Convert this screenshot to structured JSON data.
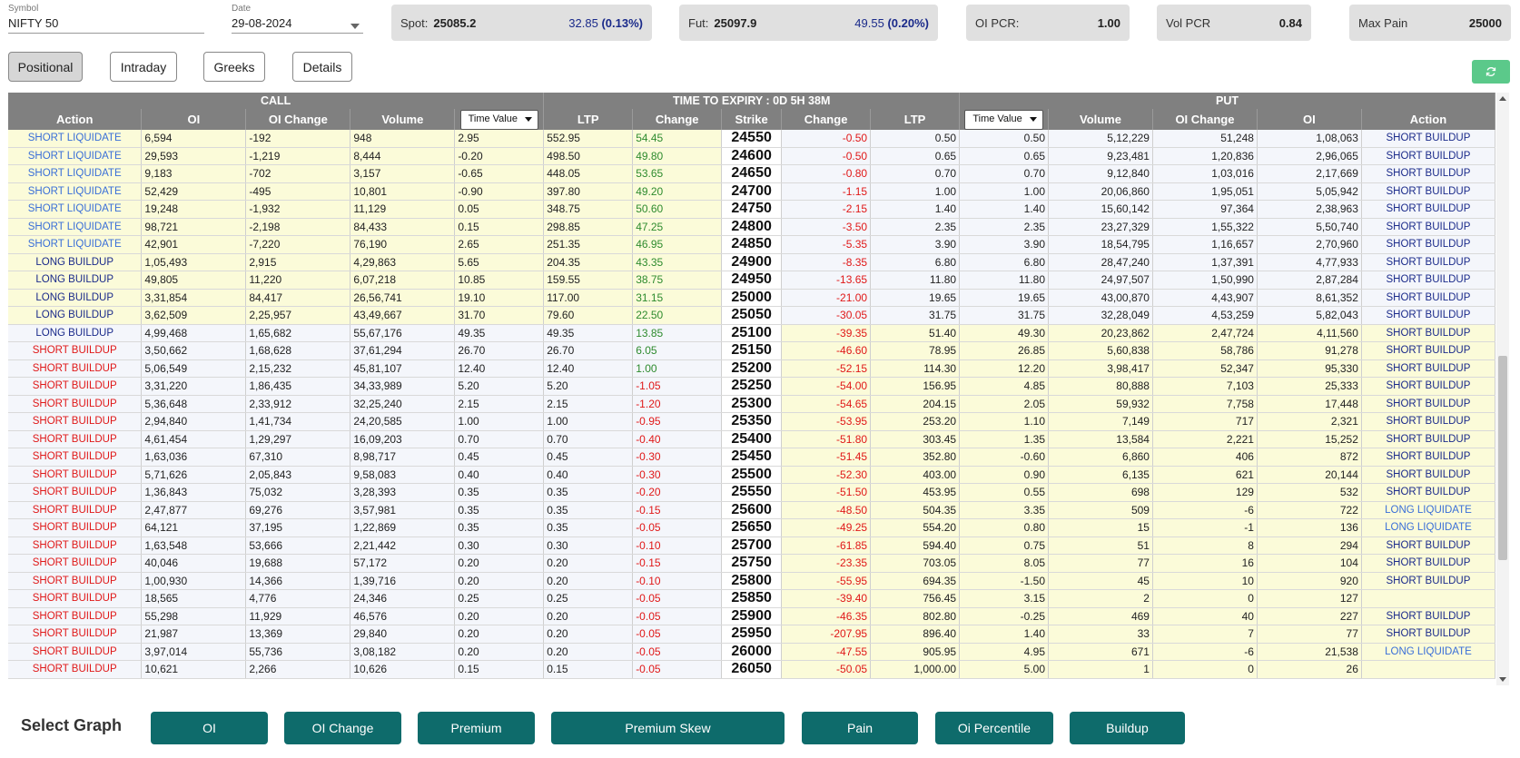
{
  "symbol": {
    "label": "Symbol",
    "value": "NIFTY 50"
  },
  "date": {
    "label": "Date",
    "value": "29-08-2024"
  },
  "stats": {
    "spot": {
      "label": "Spot:",
      "value": "25085.2",
      "change": "32.85",
      "pct": "(0.13%)"
    },
    "fut": {
      "label": "Fut:",
      "value": "25097.9",
      "change": "49.55",
      "pct": "(0.20%)"
    },
    "oi_pcr": {
      "label": "OI PCR:",
      "value": "1.00"
    },
    "vol_pcr": {
      "label": "Vol PCR",
      "value": "0.84"
    },
    "max_pain": {
      "label": "Max Pain",
      "value": "25000"
    }
  },
  "modes": {
    "positional": "Positional",
    "intraday": "Intraday",
    "greeks": "Greeks",
    "details": "Details",
    "active": "Positional"
  },
  "refresh_icon": "refresh-icon",
  "table": {
    "call_title": "CALL",
    "expiry_title": "TIME TO EXPIRY : 0D 5H 38M",
    "put_title": "PUT",
    "time_value_option": "Time Value",
    "headers": [
      "Action",
      "OI",
      "OI Change",
      "Volume",
      "",
      "LTP",
      "Change",
      "Strike",
      "Change",
      "LTP",
      "",
      "Volume",
      "OI Change",
      "OI",
      "Action"
    ],
    "rows": [
      {
        "ca": "SHORT LIQUIDATE",
        "coi": "6,594",
        "coic": "-192",
        "cvol": "948",
        "ctv": "2.95",
        "cltp": "552.95",
        "cchg": "54.45",
        "strike": "24550",
        "pchg": "-0.50",
        "pltp": "0.50",
        "ptv": "0.50",
        "pvol": "5,12,229",
        "poic": "51,248",
        "poi": "1,08,063",
        "pa": "SHORT BUILDUP"
      },
      {
        "ca": "SHORT LIQUIDATE",
        "coi": "29,593",
        "coic": "-1,219",
        "cvol": "8,444",
        "ctv": "-0.20",
        "cltp": "498.50",
        "cchg": "49.80",
        "strike": "24600",
        "pchg": "-0.50",
        "pltp": "0.65",
        "ptv": "0.65",
        "pvol": "9,23,481",
        "poic": "1,20,836",
        "poi": "2,96,065",
        "pa": "SHORT BUILDUP"
      },
      {
        "ca": "SHORT LIQUIDATE",
        "coi": "9,183",
        "coic": "-702",
        "cvol": "3,157",
        "ctv": "-0.65",
        "cltp": "448.05",
        "cchg": "53.65",
        "strike": "24650",
        "pchg": "-0.80",
        "pltp": "0.70",
        "ptv": "0.70",
        "pvol": "9,12,840",
        "poic": "1,03,016",
        "poi": "2,17,669",
        "pa": "SHORT BUILDUP"
      },
      {
        "ca": "SHORT LIQUIDATE",
        "coi": "52,429",
        "coic": "-495",
        "cvol": "10,801",
        "ctv": "-0.90",
        "cltp": "397.80",
        "cchg": "49.20",
        "strike": "24700",
        "pchg": "-1.15",
        "pltp": "1.00",
        "ptv": "1.00",
        "pvol": "20,06,860",
        "poic": "1,95,051",
        "poi": "5,05,942",
        "pa": "SHORT BUILDUP"
      },
      {
        "ca": "SHORT LIQUIDATE",
        "coi": "19,248",
        "coic": "-1,932",
        "cvol": "11,129",
        "ctv": "0.05",
        "cltp": "348.75",
        "cchg": "50.60",
        "strike": "24750",
        "pchg": "-2.15",
        "pltp": "1.40",
        "ptv": "1.40",
        "pvol": "15,60,142",
        "poic": "97,364",
        "poi": "2,38,963",
        "pa": "SHORT BUILDUP"
      },
      {
        "ca": "SHORT LIQUIDATE",
        "coi": "98,721",
        "coic": "-2,198",
        "cvol": "84,433",
        "ctv": "0.15",
        "cltp": "298.85",
        "cchg": "47.25",
        "strike": "24800",
        "pchg": "-3.50",
        "pltp": "2.35",
        "ptv": "2.35",
        "pvol": "23,27,329",
        "poic": "1,55,322",
        "poi": "5,50,740",
        "pa": "SHORT BUILDUP"
      },
      {
        "ca": "SHORT LIQUIDATE",
        "coi": "42,901",
        "coic": "-7,220",
        "cvol": "76,190",
        "ctv": "2.65",
        "cltp": "251.35",
        "cchg": "46.95",
        "strike": "24850",
        "pchg": "-5.35",
        "pltp": "3.90",
        "ptv": "3.90",
        "pvol": "18,54,795",
        "poic": "1,16,657",
        "poi": "2,70,960",
        "pa": "SHORT BUILDUP"
      },
      {
        "ca": "LONG BUILDUP",
        "coi": "1,05,493",
        "coic": "2,915",
        "cvol": "4,29,863",
        "ctv": "5.65",
        "cltp": "204.35",
        "cchg": "43.35",
        "strike": "24900",
        "pchg": "-8.35",
        "pltp": "6.80",
        "ptv": "6.80",
        "pvol": "28,47,240",
        "poic": "1,37,391",
        "poi": "4,77,933",
        "pa": "SHORT BUILDUP"
      },
      {
        "ca": "LONG BUILDUP",
        "coi": "49,805",
        "coic": "11,220",
        "cvol": "6,07,218",
        "ctv": "10.85",
        "cltp": "159.55",
        "cchg": "38.75",
        "strike": "24950",
        "pchg": "-13.65",
        "pltp": "11.80",
        "ptv": "11.80",
        "pvol": "24,97,507",
        "poic": "1,50,990",
        "poi": "2,87,284",
        "pa": "SHORT BUILDUP"
      },
      {
        "ca": "LONG BUILDUP",
        "coi": "3,31,854",
        "coic": "84,417",
        "cvol": "26,56,741",
        "ctv": "19.10",
        "cltp": "117.00",
        "cchg": "31.15",
        "strike": "25000",
        "pchg": "-21.00",
        "pltp": "19.65",
        "ptv": "19.65",
        "pvol": "43,00,870",
        "poic": "4,43,907",
        "poi": "8,61,352",
        "pa": "SHORT BUILDUP"
      },
      {
        "ca": "LONG BUILDUP",
        "coi": "3,62,509",
        "coic": "2,25,957",
        "cvol": "43,49,667",
        "ctv": "31.70",
        "cltp": "79.60",
        "cchg": "22.50",
        "strike": "25050",
        "pchg": "-30.05",
        "pltp": "31.75",
        "ptv": "31.75",
        "pvol": "32,28,049",
        "poic": "4,53,259",
        "poi": "5,82,043",
        "pa": "SHORT BUILDUP"
      },
      {
        "ca": "LONG BUILDUP",
        "coi": "4,99,468",
        "coic": "1,65,682",
        "cvol": "55,67,176",
        "ctv": "49.35",
        "cltp": "49.35",
        "cchg": "13.85",
        "strike": "25100",
        "pchg": "-39.35",
        "pltp": "51.40",
        "ptv": "49.30",
        "pvol": "20,23,862",
        "poic": "2,47,724",
        "poi": "4,11,560",
        "pa": "SHORT BUILDUP"
      },
      {
        "ca": "SHORT BUILDUP",
        "coi": "3,50,662",
        "coic": "1,68,628",
        "cvol": "37,61,294",
        "ctv": "26.70",
        "cltp": "26.70",
        "cchg": "6.05",
        "strike": "25150",
        "pchg": "-46.60",
        "pltp": "78.95",
        "ptv": "26.85",
        "pvol": "5,60,838",
        "poic": "58,786",
        "poi": "91,278",
        "pa": "SHORT BUILDUP"
      },
      {
        "ca": "SHORT BUILDUP",
        "coi": "5,06,549",
        "coic": "2,15,232",
        "cvol": "45,81,107",
        "ctv": "12.40",
        "cltp": "12.40",
        "cchg": "1.00",
        "strike": "25200",
        "pchg": "-52.15",
        "pltp": "114.30",
        "ptv": "12.20",
        "pvol": "3,98,417",
        "poic": "52,347",
        "poi": "95,330",
        "pa": "SHORT BUILDUP"
      },
      {
        "ca": "SHORT BUILDUP",
        "coi": "3,31,220",
        "coic": "1,86,435",
        "cvol": "34,33,989",
        "ctv": "5.20",
        "cltp": "5.20",
        "cchg": "-1.05",
        "strike": "25250",
        "pchg": "-54.00",
        "pltp": "156.95",
        "ptv": "4.85",
        "pvol": "80,888",
        "poic": "7,103",
        "poi": "25,333",
        "pa": "SHORT BUILDUP"
      },
      {
        "ca": "SHORT BUILDUP",
        "coi": "5,36,648",
        "coic": "2,33,912",
        "cvol": "32,25,240",
        "ctv": "2.15",
        "cltp": "2.15",
        "cchg": "-1.20",
        "strike": "25300",
        "pchg": "-54.65",
        "pltp": "204.15",
        "ptv": "2.05",
        "pvol": "59,932",
        "poic": "7,758",
        "poi": "17,448",
        "pa": "SHORT BUILDUP"
      },
      {
        "ca": "SHORT BUILDUP",
        "coi": "2,94,840",
        "coic": "1,41,734",
        "cvol": "24,20,585",
        "ctv": "1.00",
        "cltp": "1.00",
        "cchg": "-0.95",
        "strike": "25350",
        "pchg": "-53.95",
        "pltp": "253.20",
        "ptv": "1.10",
        "pvol": "7,149",
        "poic": "717",
        "poi": "2,321",
        "pa": "SHORT BUILDUP"
      },
      {
        "ca": "SHORT BUILDUP",
        "coi": "4,61,454",
        "coic": "1,29,297",
        "cvol": "16,09,203",
        "ctv": "0.70",
        "cltp": "0.70",
        "cchg": "-0.40",
        "strike": "25400",
        "pchg": "-51.80",
        "pltp": "303.45",
        "ptv": "1.35",
        "pvol": "13,584",
        "poic": "2,221",
        "poi": "15,252",
        "pa": "SHORT BUILDUP"
      },
      {
        "ca": "SHORT BUILDUP",
        "coi": "1,63,036",
        "coic": "67,310",
        "cvol": "8,98,717",
        "ctv": "0.45",
        "cltp": "0.45",
        "cchg": "-0.30",
        "strike": "25450",
        "pchg": "-51.45",
        "pltp": "352.80",
        "ptv": "-0.60",
        "pvol": "6,860",
        "poic": "406",
        "poi": "872",
        "pa": "SHORT BUILDUP"
      },
      {
        "ca": "SHORT BUILDUP",
        "coi": "5,71,626",
        "coic": "2,05,843",
        "cvol": "9,58,083",
        "ctv": "0.40",
        "cltp": "0.40",
        "cchg": "-0.30",
        "strike": "25500",
        "pchg": "-52.30",
        "pltp": "403.00",
        "ptv": "0.90",
        "pvol": "6,135",
        "poic": "621",
        "poi": "20,144",
        "pa": "SHORT BUILDUP"
      },
      {
        "ca": "SHORT BUILDUP",
        "coi": "1,36,843",
        "coic": "75,032",
        "cvol": "3,28,393",
        "ctv": "0.35",
        "cltp": "0.35",
        "cchg": "-0.20",
        "strike": "25550",
        "pchg": "-51.50",
        "pltp": "453.95",
        "ptv": "0.55",
        "pvol": "698",
        "poic": "129",
        "poi": "532",
        "pa": "SHORT BUILDUP"
      },
      {
        "ca": "SHORT BUILDUP",
        "coi": "2,47,877",
        "coic": "69,276",
        "cvol": "3,57,981",
        "ctv": "0.35",
        "cltp": "0.35",
        "cchg": "-0.15",
        "strike": "25600",
        "pchg": "-48.50",
        "pltp": "504.35",
        "ptv": "3.35",
        "pvol": "509",
        "poic": "-6",
        "poi": "722",
        "pa": "LONG LIQUIDATE"
      },
      {
        "ca": "SHORT BUILDUP",
        "coi": "64,121",
        "coic": "37,195",
        "cvol": "1,22,869",
        "ctv": "0.35",
        "cltp": "0.35",
        "cchg": "-0.05",
        "strike": "25650",
        "pchg": "-49.25",
        "pltp": "554.20",
        "ptv": "0.80",
        "pvol": "15",
        "poic": "-1",
        "poi": "136",
        "pa": "LONG LIQUIDATE"
      },
      {
        "ca": "SHORT BUILDUP",
        "coi": "1,63,548",
        "coic": "53,666",
        "cvol": "2,21,442",
        "ctv": "0.30",
        "cltp": "0.30",
        "cchg": "-0.10",
        "strike": "25700",
        "pchg": "-61.85",
        "pltp": "594.40",
        "ptv": "0.75",
        "pvol": "51",
        "poic": "8",
        "poi": "294",
        "pa": "SHORT BUILDUP"
      },
      {
        "ca": "SHORT BUILDUP",
        "coi": "40,046",
        "coic": "19,688",
        "cvol": "57,172",
        "ctv": "0.20",
        "cltp": "0.20",
        "cchg": "-0.15",
        "strike": "25750",
        "pchg": "-23.35",
        "pltp": "703.05",
        "ptv": "8.05",
        "pvol": "77",
        "poic": "16",
        "poi": "104",
        "pa": "SHORT BUILDUP"
      },
      {
        "ca": "SHORT BUILDUP",
        "coi": "1,00,930",
        "coic": "14,366",
        "cvol": "1,39,716",
        "ctv": "0.20",
        "cltp": "0.20",
        "cchg": "-0.10",
        "strike": "25800",
        "pchg": "-55.95",
        "pltp": "694.35",
        "ptv": "-1.50",
        "pvol": "45",
        "poic": "10",
        "poi": "920",
        "pa": "SHORT BUILDUP"
      },
      {
        "ca": "SHORT BUILDUP",
        "coi": "18,565",
        "coic": "4,776",
        "cvol": "24,346",
        "ctv": "0.25",
        "cltp": "0.25",
        "cchg": "-0.05",
        "strike": "25850",
        "pchg": "-39.40",
        "pltp": "756.45",
        "ptv": "3.15",
        "pvol": "2",
        "poic": "0",
        "poi": "127",
        "pa": ""
      },
      {
        "ca": "SHORT BUILDUP",
        "coi": "55,298",
        "coic": "11,929",
        "cvol": "46,576",
        "ctv": "0.20",
        "cltp": "0.20",
        "cchg": "-0.05",
        "strike": "25900",
        "pchg": "-46.35",
        "pltp": "802.80",
        "ptv": "-0.25",
        "pvol": "469",
        "poic": "40",
        "poi": "227",
        "pa": "SHORT BUILDUP"
      },
      {
        "ca": "SHORT BUILDUP",
        "coi": "21,987",
        "coic": "13,369",
        "cvol": "29,840",
        "ctv": "0.20",
        "cltp": "0.20",
        "cchg": "-0.05",
        "strike": "25950",
        "pchg": "-207.95",
        "pltp": "896.40",
        "ptv": "1.40",
        "pvol": "33",
        "poic": "7",
        "poi": "77",
        "pa": "SHORT BUILDUP"
      },
      {
        "ca": "SHORT BUILDUP",
        "coi": "3,97,014",
        "coic": "55,736",
        "cvol": "3,08,182",
        "ctv": "0.20",
        "cltp": "0.20",
        "cchg": "-0.05",
        "strike": "26000",
        "pchg": "-47.55",
        "pltp": "905.95",
        "ptv": "4.95",
        "pvol": "671",
        "poic": "-6",
        "poi": "21,538",
        "pa": "LONG LIQUIDATE"
      },
      {
        "ca": "SHORT BUILDUP",
        "coi": "10,621",
        "coic": "2,266",
        "cvol": "10,626",
        "ctv": "0.15",
        "cltp": "0.15",
        "cchg": "-0.05",
        "strike": "26050",
        "pchg": "-50.05",
        "pltp": "1,000.00",
        "ptv": "5.00",
        "pvol": "1",
        "poic": "0",
        "poi": "26",
        "pa": ""
      }
    ],
    "call_itm_count": 11
  },
  "graph": {
    "label": "Select Graph",
    "buttons": [
      "OI",
      "OI Change",
      "Premium",
      "Premium Skew",
      "Pain",
      "Oi Percentile",
      "Buildup"
    ]
  },
  "colors": {
    "header_bg": "#808080",
    "itm_bg": "#fbfbd9",
    "graph_btn": "#0e6b6b",
    "refresh_btn": "#5bc98a",
    "negative": "#e01818",
    "positive": "#2e8b2e"
  }
}
